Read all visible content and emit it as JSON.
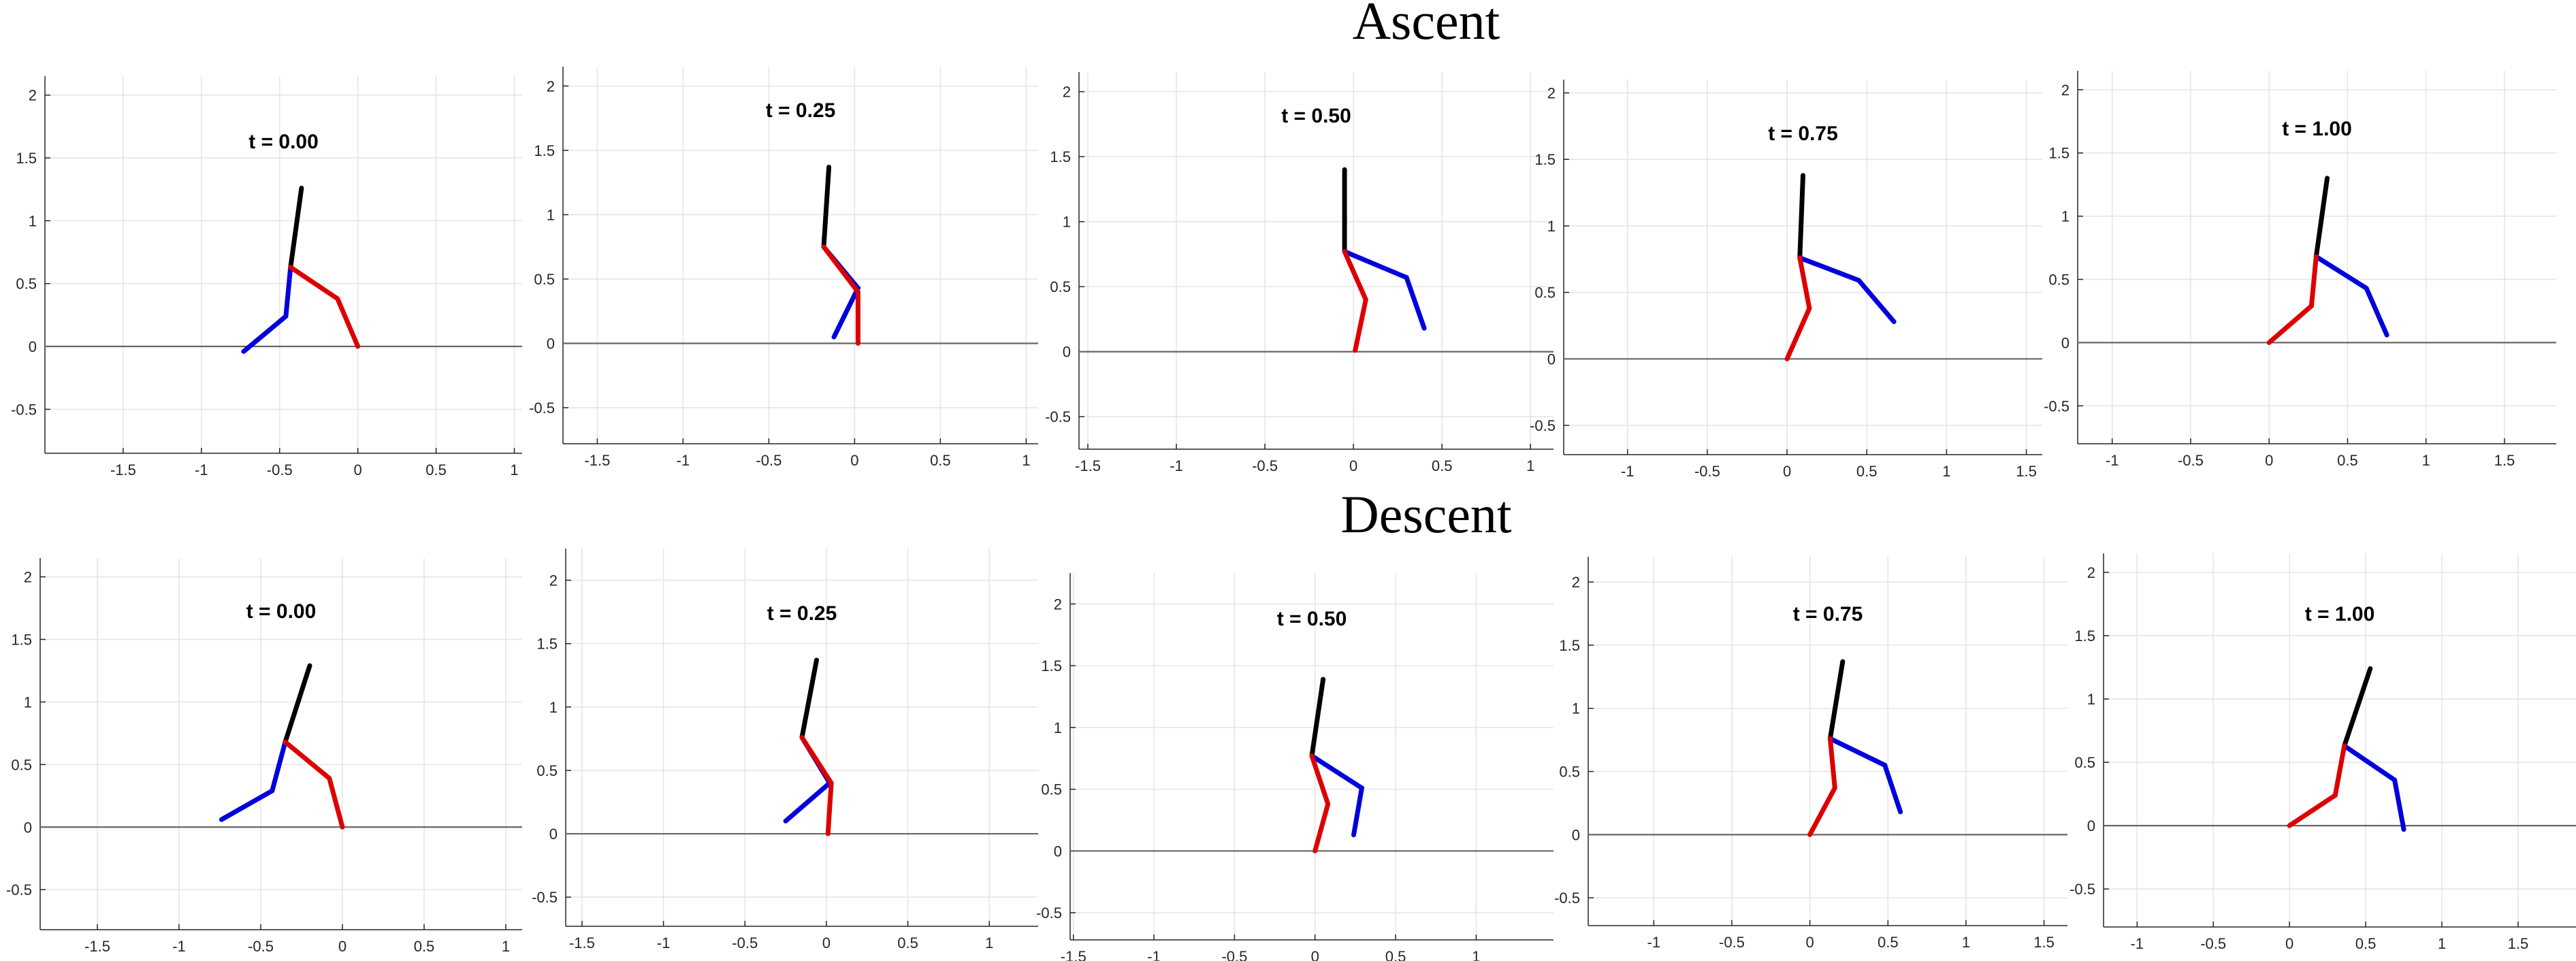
{
  "colors": {
    "torso": "#000000",
    "blue_leg": "#0000dd",
    "red_leg": "#dd0000",
    "ground": "#666666",
    "grid": "#e4e4e4"
  },
  "row_titles": {
    "ascent": "Ascent",
    "descent": "Descent"
  },
  "chart_data": [
    {
      "type": "line",
      "group": "ascent",
      "title": "t = 0.00",
      "grid": true,
      "xlim": [
        -2,
        1.05
      ],
      "ylim": [
        -0.85,
        2.15
      ],
      "xticks": [
        -1.5,
        -1,
        -0.5,
        0,
        0.5,
        1
      ],
      "xtick_labels": [
        "-1.5",
        "-1",
        "-0.5",
        "0",
        "0.5",
        "1"
      ],
      "yticks": [
        -0.5,
        0,
        0.5,
        1,
        1.5,
        2
      ],
      "ytick_labels": [
        "-0.5",
        "0",
        "0.5",
        "1",
        "1.5",
        "2"
      ],
      "ground_y": 0,
      "series": [
        {
          "color": "#000000",
          "x": [
            -0.43,
            -0.36
          ],
          "y": [
            0.63,
            1.26
          ]
        },
        {
          "color": "#0000dd",
          "x": [
            -0.43,
            -0.46,
            -0.73
          ],
          "y": [
            0.63,
            0.24,
            -0.04
          ]
        },
        {
          "color": "#dd0000",
          "x": [
            -0.43,
            -0.13,
            0.0
          ],
          "y": [
            0.63,
            0.38,
            0.0
          ]
        }
      ]
    },
    {
      "type": "line",
      "group": "ascent",
      "title": "t = 0.25",
      "grid": true,
      "xlim": [
        -1.7,
        1.07
      ],
      "ylim": [
        -0.78,
        2.15
      ],
      "xticks": [
        -1.5,
        -1,
        -0.5,
        0,
        0.5,
        1
      ],
      "xtick_labels": [
        "-1.5",
        "-1",
        "-0.5",
        "0",
        "0.5",
        "1"
      ],
      "yticks": [
        -0.5,
        0,
        0.5,
        1,
        1.5,
        2
      ],
      "ytick_labels": [
        "-0.5",
        "0",
        "0.5",
        "1",
        "1.5",
        "2"
      ],
      "ground_y": 0,
      "series": [
        {
          "color": "#000000",
          "x": [
            -0.18,
            -0.15
          ],
          "y": [
            0.75,
            1.37
          ]
        },
        {
          "color": "#0000dd",
          "x": [
            -0.18,
            0.02,
            -0.12
          ],
          "y": [
            0.75,
            0.43,
            0.05
          ]
        },
        {
          "color": "#dd0000",
          "x": [
            -0.18,
            0.02,
            0.02
          ],
          "y": [
            0.75,
            0.4,
            0.0
          ]
        }
      ]
    },
    {
      "type": "line",
      "group": "ascent",
      "title": "t = 0.50",
      "grid": true,
      "xlim": [
        -1.55,
        1.13
      ],
      "ylim": [
        -0.75,
        2.15
      ],
      "xticks": [
        -1.5,
        -1,
        -0.5,
        0,
        0.5,
        1
      ],
      "xtick_labels": [
        "-1.5",
        "-1",
        "-0.5",
        "0",
        "0.5",
        "1"
      ],
      "yticks": [
        -0.5,
        0,
        0.5,
        1,
        1.5,
        2
      ],
      "ytick_labels": [
        "-0.5",
        "0",
        "0.5",
        "1",
        "1.5",
        "2"
      ],
      "ground_y": 0,
      "series": [
        {
          "color": "#000000",
          "x": [
            -0.05,
            -0.05
          ],
          "y": [
            0.77,
            1.4
          ]
        },
        {
          "color": "#0000dd",
          "x": [
            -0.05,
            0.3,
            0.4
          ],
          "y": [
            0.77,
            0.57,
            0.18
          ]
        },
        {
          "color": "#dd0000",
          "x": [
            -0.05,
            0.07,
            0.01
          ],
          "y": [
            0.77,
            0.4,
            0.01
          ]
        }
      ]
    },
    {
      "type": "line",
      "group": "ascent",
      "title": "t = 0.75",
      "grid": true,
      "xlim": [
        -1.4,
        1.6
      ],
      "ylim": [
        -0.72,
        2.1
      ],
      "xticks": [
        -1,
        -0.5,
        0,
        0.5,
        1,
        1.5
      ],
      "xtick_labels": [
        "-1",
        "-0.5",
        "0",
        "0.5",
        "1",
        "1.5"
      ],
      "yticks": [
        -0.5,
        0,
        0.5,
        1,
        1.5,
        2
      ],
      "ytick_labels": [
        "-0.5",
        "0",
        "0.5",
        "1",
        "1.5",
        "2"
      ],
      "ground_y": 0,
      "series": [
        {
          "color": "#000000",
          "x": [
            0.08,
            0.1
          ],
          "y": [
            0.76,
            1.38
          ]
        },
        {
          "color": "#0000dd",
          "x": [
            0.08,
            0.45,
            0.67
          ],
          "y": [
            0.76,
            0.59,
            0.28
          ]
        },
        {
          "color": "#dd0000",
          "x": [
            0.08,
            0.14,
            0.0
          ],
          "y": [
            0.76,
            0.38,
            0.0
          ]
        }
      ]
    },
    {
      "type": "line",
      "group": "ascent",
      "title": "t = 1.00",
      "grid": true,
      "xlim": [
        -1.22,
        1.83
      ],
      "ylim": [
        -0.8,
        2.15
      ],
      "xticks": [
        -1,
        -0.5,
        0,
        0.5,
        1,
        1.5
      ],
      "xtick_labels": [
        "-1",
        "-0.5",
        "0",
        "0.5",
        "1",
        "1.5"
      ],
      "yticks": [
        -0.5,
        0,
        0.5,
        1,
        1.5,
        2
      ],
      "ytick_labels": [
        "-0.5",
        "0",
        "0.5",
        "1",
        "1.5",
        "2"
      ],
      "ground_y": 0,
      "series": [
        {
          "color": "#000000",
          "x": [
            0.3,
            0.37
          ],
          "y": [
            0.68,
            1.3
          ]
        },
        {
          "color": "#0000dd",
          "x": [
            0.3,
            0.62,
            0.75
          ],
          "y": [
            0.68,
            0.43,
            0.06
          ]
        },
        {
          "color": "#dd0000",
          "x": [
            0.3,
            0.27,
            0.0
          ],
          "y": [
            0.68,
            0.29,
            0.0
          ]
        }
      ]
    },
    {
      "type": "line",
      "group": "descent",
      "title": "t = 0.00",
      "grid": true,
      "xlim": [
        -1.85,
        1.1
      ],
      "ylim": [
        -0.82,
        2.15
      ],
      "xticks": [
        -1.5,
        -1,
        -0.5,
        0,
        0.5,
        1
      ],
      "xtick_labels": [
        "-1.5",
        "-1",
        "-0.5",
        "0",
        "0.5",
        "1"
      ],
      "yticks": [
        -0.5,
        0,
        0.5,
        1,
        1.5,
        2
      ],
      "ytick_labels": [
        "-0.5",
        "0",
        "0.5",
        "1",
        "1.5",
        "2"
      ],
      "ground_y": 0,
      "series": [
        {
          "color": "#000000",
          "x": [
            -0.35,
            -0.2
          ],
          "y": [
            0.68,
            1.29
          ]
        },
        {
          "color": "#0000dd",
          "x": [
            -0.35,
            -0.43,
            -0.74
          ],
          "y": [
            0.68,
            0.29,
            0.06
          ]
        },
        {
          "color": "#dd0000",
          "x": [
            -0.35,
            -0.08,
            0.0
          ],
          "y": [
            0.68,
            0.39,
            0.0
          ]
        }
      ]
    },
    {
      "type": "line",
      "group": "descent",
      "title": "t = 0.25",
      "grid": true,
      "xlim": [
        -1.6,
        1.3
      ],
      "ylim": [
        -0.73,
        2.25
      ],
      "xticks": [
        -1.5,
        -1,
        -0.5,
        0,
        0.5,
        1
      ],
      "xtick_labels": [
        "-1.5",
        "-1",
        "-0.5",
        "0",
        "0.5",
        "1"
      ],
      "yticks": [
        -0.5,
        0,
        0.5,
        1,
        1.5,
        2
      ],
      "ytick_labels": [
        "-0.5",
        "0",
        "0.5",
        "1",
        "1.5",
        "2"
      ],
      "ground_y": 0,
      "series": [
        {
          "color": "#000000",
          "x": [
            -0.15,
            -0.06
          ],
          "y": [
            0.76,
            1.37
          ]
        },
        {
          "color": "#0000dd",
          "x": [
            -0.15,
            0.02,
            -0.25
          ],
          "y": [
            0.76,
            0.4,
            0.1
          ]
        },
        {
          "color": "#dd0000",
          "x": [
            -0.15,
            0.03,
            0.01
          ],
          "y": [
            0.76,
            0.4,
            0.0
          ]
        }
      ]
    },
    {
      "type": "line",
      "group": "descent",
      "title": "t = 0.50",
      "grid": true,
      "xlim": [
        -1.52,
        1.48
      ],
      "ylim": [
        -0.72,
        2.25
      ],
      "xticks": [
        -1.5,
        -1,
        -0.5,
        0,
        0.5,
        1
      ],
      "xtick_labels": [
        "-1.5",
        "-1",
        "-0.5",
        "0",
        "0.5",
        "1"
      ],
      "yticks": [
        -0.5,
        0,
        0.5,
        1,
        1.5,
        2
      ],
      "ytick_labels": [
        "-0.5",
        "0",
        "0.5",
        "1",
        "1.5",
        "2"
      ],
      "ground_y": 0,
      "series": [
        {
          "color": "#000000",
          "x": [
            -0.02,
            0.05
          ],
          "y": [
            0.77,
            1.39
          ]
        },
        {
          "color": "#0000dd",
          "x": [
            -0.02,
            0.29,
            0.24
          ],
          "y": [
            0.77,
            0.51,
            0.13
          ]
        },
        {
          "color": "#dd0000",
          "x": [
            -0.02,
            0.08,
            0.0
          ],
          "y": [
            0.77,
            0.38,
            0.0
          ]
        }
      ]
    },
    {
      "type": "line",
      "group": "descent",
      "title": "t = 0.75",
      "grid": true,
      "xlim": [
        -1.42,
        1.65
      ],
      "ylim": [
        -0.72,
        2.2
      ],
      "xticks": [
        -1,
        -0.5,
        0,
        0.5,
        1,
        1.5
      ],
      "xtick_labels": [
        "-1",
        "-0.5",
        "0",
        "0.5",
        "1",
        "1.5"
      ],
      "yticks": [
        -0.5,
        0,
        0.5,
        1,
        1.5,
        2
      ],
      "ytick_labels": [
        "-0.5",
        "0",
        "0.5",
        "1",
        "1.5",
        "2"
      ],
      "ground_y": 0,
      "series": [
        {
          "color": "#000000",
          "x": [
            0.13,
            0.21
          ],
          "y": [
            0.76,
            1.37
          ]
        },
        {
          "color": "#0000dd",
          "x": [
            0.13,
            0.48,
            0.58
          ],
          "y": [
            0.76,
            0.55,
            0.18
          ]
        },
        {
          "color": "#dd0000",
          "x": [
            0.13,
            0.16,
            0.0
          ],
          "y": [
            0.76,
            0.37,
            0.0
          ]
        }
      ]
    },
    {
      "type": "line",
      "group": "descent",
      "title": "t = 1.00",
      "grid": true,
      "xlim": [
        -1.22,
        1.88
      ],
      "ylim": [
        -0.8,
        2.15
      ],
      "xticks": [
        -1,
        -0.5,
        0,
        0.5,
        1,
        1.5
      ],
      "xtick_labels": [
        "-1",
        "-0.5",
        "0",
        "0.5",
        "1",
        "1.5"
      ],
      "yticks": [
        -0.5,
        0,
        0.5,
        1,
        1.5,
        2
      ],
      "ytick_labels": [
        "-0.5",
        "0",
        "0.5",
        "1",
        "1.5",
        "2"
      ],
      "ground_y": 0,
      "series": [
        {
          "color": "#000000",
          "x": [
            0.36,
            0.53
          ],
          "y": [
            0.63,
            1.24
          ]
        },
        {
          "color": "#0000dd",
          "x": [
            0.36,
            0.69,
            0.75
          ],
          "y": [
            0.63,
            0.36,
            -0.03
          ]
        },
        {
          "color": "#dd0000",
          "x": [
            0.36,
            0.3,
            0.0
          ],
          "y": [
            0.63,
            0.24,
            0.0
          ]
        }
      ]
    }
  ]
}
